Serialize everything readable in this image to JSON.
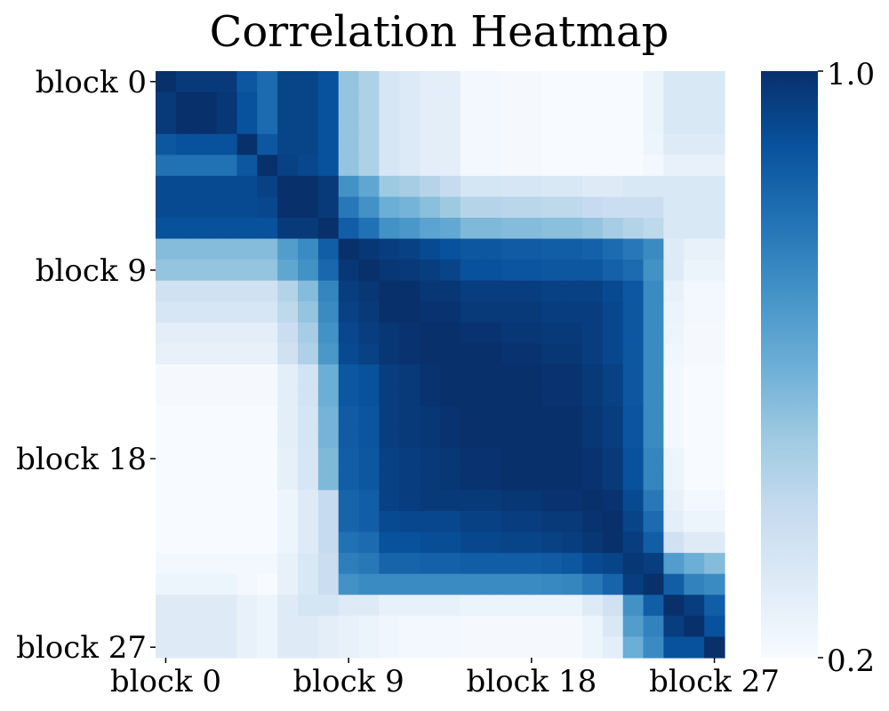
{
  "chart_data": {
    "type": "heatmap",
    "title": "Correlation Heatmap",
    "xlabel": "",
    "ylabel": "",
    "n": 28,
    "row_labels": [
      "block 0",
      "block 9",
      "block 18",
      "block 27"
    ],
    "col_labels": [
      "block 0",
      "block 9",
      "block 18",
      "block 27"
    ],
    "label_indices": [
      0,
      9,
      18,
      27
    ],
    "colorbar": {
      "min": 0.2,
      "max": 1.0,
      "min_label": "0.2",
      "max_label": "1.0",
      "colormap": "Blues"
    },
    "values": [
      [
        1.0,
        0.97,
        0.97,
        0.97,
        0.88,
        0.82,
        0.94,
        0.94,
        0.9,
        0.52,
        0.46,
        0.33,
        0.31,
        0.28,
        0.28,
        0.22,
        0.22,
        0.21,
        0.21,
        0.2,
        0.2,
        0.2,
        0.2,
        0.2,
        0.25,
        0.32,
        0.32,
        0.32
      ],
      [
        0.97,
        1.0,
        1.0,
        0.98,
        0.9,
        0.82,
        0.94,
        0.94,
        0.9,
        0.52,
        0.46,
        0.33,
        0.31,
        0.28,
        0.28,
        0.22,
        0.22,
        0.21,
        0.21,
        0.2,
        0.2,
        0.2,
        0.2,
        0.2,
        0.25,
        0.32,
        0.32,
        0.32
      ],
      [
        0.97,
        1.0,
        1.0,
        0.98,
        0.9,
        0.82,
        0.94,
        0.94,
        0.9,
        0.52,
        0.46,
        0.33,
        0.31,
        0.28,
        0.28,
        0.22,
        0.22,
        0.21,
        0.21,
        0.2,
        0.2,
        0.2,
        0.2,
        0.2,
        0.25,
        0.32,
        0.32,
        0.32
      ],
      [
        0.88,
        0.9,
        0.9,
        0.9,
        1.0,
        0.88,
        0.94,
        0.94,
        0.9,
        0.52,
        0.46,
        0.33,
        0.31,
        0.28,
        0.28,
        0.22,
        0.22,
        0.21,
        0.21,
        0.2,
        0.2,
        0.2,
        0.2,
        0.2,
        0.24,
        0.3,
        0.3,
        0.3
      ],
      [
        0.8,
        0.8,
        0.8,
        0.8,
        0.88,
        1.0,
        0.95,
        0.93,
        0.9,
        0.52,
        0.46,
        0.33,
        0.31,
        0.28,
        0.28,
        0.22,
        0.22,
        0.21,
        0.21,
        0.2,
        0.2,
        0.2,
        0.2,
        0.2,
        0.22,
        0.26,
        0.26,
        0.26
      ],
      [
        0.92,
        0.92,
        0.92,
        0.92,
        0.92,
        0.95,
        1.0,
        1.0,
        0.97,
        0.7,
        0.63,
        0.5,
        0.48,
        0.44,
        0.4,
        0.34,
        0.34,
        0.33,
        0.33,
        0.32,
        0.32,
        0.3,
        0.3,
        0.32,
        0.32,
        0.32,
        0.32,
        0.32
      ],
      [
        0.92,
        0.92,
        0.92,
        0.92,
        0.92,
        0.93,
        1.0,
        1.0,
        0.97,
        0.78,
        0.7,
        0.6,
        0.58,
        0.54,
        0.5,
        0.44,
        0.44,
        0.43,
        0.43,
        0.42,
        0.42,
        0.4,
        0.38,
        0.38,
        0.38,
        0.32,
        0.32,
        0.32
      ],
      [
        0.9,
        0.9,
        0.9,
        0.9,
        0.9,
        0.9,
        0.97,
        0.97,
        1.0,
        0.86,
        0.8,
        0.7,
        0.68,
        0.64,
        0.62,
        0.56,
        0.56,
        0.55,
        0.55,
        0.54,
        0.54,
        0.52,
        0.48,
        0.45,
        0.42,
        0.32,
        0.32,
        0.32
      ],
      [
        0.55,
        0.55,
        0.55,
        0.55,
        0.55,
        0.55,
        0.66,
        0.72,
        0.86,
        1.0,
        0.98,
        0.96,
        0.95,
        0.92,
        0.9,
        0.88,
        0.88,
        0.87,
        0.87,
        0.86,
        0.86,
        0.85,
        0.82,
        0.78,
        0.72,
        0.3,
        0.26,
        0.26
      ],
      [
        0.52,
        0.52,
        0.52,
        0.52,
        0.52,
        0.52,
        0.63,
        0.7,
        0.83,
        0.98,
        1.0,
        0.98,
        0.97,
        0.96,
        0.94,
        0.9,
        0.9,
        0.89,
        0.89,
        0.88,
        0.88,
        0.88,
        0.85,
        0.82,
        0.7,
        0.3,
        0.25,
        0.25
      ],
      [
        0.36,
        0.36,
        0.36,
        0.36,
        0.36,
        0.36,
        0.45,
        0.55,
        0.74,
        0.96,
        0.98,
        1.0,
        1.0,
        0.98,
        0.98,
        0.96,
        0.96,
        0.96,
        0.96,
        0.95,
        0.95,
        0.95,
        0.92,
        0.88,
        0.72,
        0.26,
        0.22,
        0.22
      ],
      [
        0.33,
        0.33,
        0.33,
        0.33,
        0.33,
        0.33,
        0.42,
        0.52,
        0.72,
        0.95,
        0.97,
        1.0,
        1.0,
        0.99,
        0.99,
        0.97,
        0.97,
        0.97,
        0.97,
        0.96,
        0.96,
        0.96,
        0.93,
        0.88,
        0.72,
        0.25,
        0.22,
        0.22
      ],
      [
        0.28,
        0.28,
        0.28,
        0.28,
        0.28,
        0.28,
        0.38,
        0.48,
        0.7,
        0.93,
        0.96,
        0.98,
        0.99,
        1.0,
        1.0,
        0.99,
        0.99,
        0.98,
        0.98,
        0.97,
        0.97,
        0.96,
        0.93,
        0.88,
        0.72,
        0.24,
        0.21,
        0.21
      ],
      [
        0.26,
        0.26,
        0.26,
        0.26,
        0.26,
        0.26,
        0.36,
        0.46,
        0.68,
        0.92,
        0.95,
        0.98,
        0.99,
        1.0,
        1.0,
        1.0,
        1.0,
        0.99,
        0.99,
        0.98,
        0.98,
        0.96,
        0.93,
        0.88,
        0.72,
        0.23,
        0.21,
        0.21
      ],
      [
        0.21,
        0.21,
        0.21,
        0.21,
        0.21,
        0.21,
        0.28,
        0.35,
        0.6,
        0.88,
        0.9,
        0.96,
        0.97,
        0.99,
        1.0,
        1.0,
        1.0,
        1.0,
        1.0,
        0.99,
        0.99,
        0.97,
        0.95,
        0.88,
        0.72,
        0.22,
        0.2,
        0.2
      ],
      [
        0.21,
        0.21,
        0.21,
        0.21,
        0.21,
        0.21,
        0.28,
        0.35,
        0.6,
        0.88,
        0.9,
        0.96,
        0.97,
        0.99,
        1.0,
        1.0,
        1.0,
        1.0,
        1.0,
        0.99,
        0.99,
        0.97,
        0.95,
        0.88,
        0.72,
        0.22,
        0.2,
        0.2
      ],
      [
        0.2,
        0.2,
        0.2,
        0.2,
        0.2,
        0.2,
        0.28,
        0.34,
        0.58,
        0.87,
        0.89,
        0.96,
        0.97,
        0.98,
        0.99,
        1.0,
        1.0,
        1.0,
        1.0,
        1.0,
        1.0,
        0.98,
        0.96,
        0.89,
        0.72,
        0.22,
        0.2,
        0.2
      ],
      [
        0.2,
        0.2,
        0.2,
        0.2,
        0.2,
        0.2,
        0.28,
        0.34,
        0.58,
        0.87,
        0.89,
        0.96,
        0.97,
        0.98,
        0.99,
        1.0,
        1.0,
        1.0,
        1.0,
        1.0,
        1.0,
        0.98,
        0.96,
        0.89,
        0.72,
        0.22,
        0.2,
        0.2
      ],
      [
        0.2,
        0.2,
        0.2,
        0.2,
        0.2,
        0.2,
        0.27,
        0.33,
        0.56,
        0.86,
        0.88,
        0.95,
        0.96,
        0.97,
        0.98,
        0.99,
        0.99,
        1.0,
        1.0,
        1.0,
        1.0,
        0.99,
        0.97,
        0.9,
        0.74,
        0.24,
        0.2,
        0.2
      ],
      [
        0.2,
        0.2,
        0.2,
        0.2,
        0.2,
        0.2,
        0.27,
        0.33,
        0.56,
        0.86,
        0.88,
        0.95,
        0.96,
        0.97,
        0.98,
        0.99,
        0.99,
        1.0,
        1.0,
        1.0,
        1.0,
        0.99,
        0.97,
        0.9,
        0.74,
        0.24,
        0.2,
        0.2
      ],
      [
        0.2,
        0.2,
        0.2,
        0.2,
        0.2,
        0.2,
        0.24,
        0.3,
        0.4,
        0.84,
        0.86,
        0.95,
        0.96,
        0.97,
        0.97,
        0.97,
        0.97,
        0.98,
        0.98,
        0.99,
        0.99,
        1.0,
        0.99,
        0.92,
        0.78,
        0.26,
        0.22,
        0.22
      ],
      [
        0.2,
        0.2,
        0.2,
        0.2,
        0.2,
        0.2,
        0.24,
        0.3,
        0.4,
        0.84,
        0.86,
        0.92,
        0.93,
        0.93,
        0.93,
        0.95,
        0.95,
        0.96,
        0.96,
        0.97,
        0.97,
        0.99,
        1.0,
        0.94,
        0.82,
        0.28,
        0.24,
        0.24
      ],
      [
        0.2,
        0.2,
        0.2,
        0.2,
        0.2,
        0.2,
        0.24,
        0.3,
        0.4,
        0.8,
        0.82,
        0.9,
        0.9,
        0.91,
        0.91,
        0.93,
        0.93,
        0.94,
        0.94,
        0.95,
        0.96,
        0.98,
        1.0,
        0.96,
        0.86,
        0.36,
        0.3,
        0.3
      ],
      [
        0.22,
        0.22,
        0.22,
        0.22,
        0.22,
        0.22,
        0.26,
        0.32,
        0.38,
        0.76,
        0.78,
        0.84,
        0.84,
        0.85,
        0.85,
        0.86,
        0.86,
        0.86,
        0.86,
        0.87,
        0.88,
        0.92,
        0.94,
        0.98,
        0.96,
        0.66,
        0.6,
        0.55
      ],
      [
        0.24,
        0.24,
        0.24,
        0.24,
        0.22,
        0.2,
        0.26,
        0.32,
        0.38,
        0.7,
        0.72,
        0.72,
        0.72,
        0.72,
        0.72,
        0.72,
        0.72,
        0.72,
        0.72,
        0.73,
        0.74,
        0.78,
        0.84,
        0.96,
        1.0,
        0.86,
        0.75,
        0.72
      ],
      [
        0.3,
        0.3,
        0.3,
        0.3,
        0.26,
        0.24,
        0.3,
        0.34,
        0.34,
        0.3,
        0.3,
        0.26,
        0.26,
        0.26,
        0.26,
        0.25,
        0.25,
        0.25,
        0.25,
        0.25,
        0.25,
        0.3,
        0.36,
        0.7,
        0.86,
        1.0,
        0.96,
        0.86
      ],
      [
        0.3,
        0.3,
        0.3,
        0.3,
        0.26,
        0.24,
        0.3,
        0.3,
        0.28,
        0.26,
        0.25,
        0.23,
        0.22,
        0.22,
        0.22,
        0.21,
        0.21,
        0.21,
        0.21,
        0.21,
        0.21,
        0.24,
        0.32,
        0.66,
        0.75,
        0.96,
        1.0,
        0.9
      ],
      [
        0.3,
        0.3,
        0.3,
        0.3,
        0.26,
        0.24,
        0.3,
        0.3,
        0.28,
        0.26,
        0.25,
        0.23,
        0.22,
        0.22,
        0.22,
        0.21,
        0.21,
        0.21,
        0.21,
        0.21,
        0.21,
        0.24,
        0.28,
        0.6,
        0.72,
        0.9,
        0.9,
        1.0
      ]
    ]
  }
}
